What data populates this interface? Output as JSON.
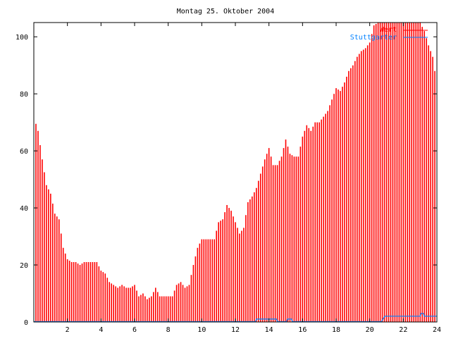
{
  "chart_data": {
    "type": "bar",
    "title": "Montag 25. Oktober 2004",
    "xlabel": "",
    "ylabel": "",
    "xlim": [
      0,
      24
    ],
    "ylim": [
      0,
      105
    ],
    "xticks": [
      2,
      4,
      6,
      8,
      10,
      12,
      14,
      16,
      18,
      20,
      22,
      24
    ],
    "yticks": [
      0,
      20,
      40,
      60,
      80,
      100
    ],
    "grid": false,
    "legend_position": "top-right",
    "series": [
      {
        "name": "Wert",
        "type": "impulses",
        "color": "#ff0000",
        "x_step_hours": 0.25,
        "values": [
          72,
          67,
          57,
          48,
          45,
          38,
          36,
          26,
          22,
          21,
          21,
          20,
          21,
          21,
          21,
          21,
          18,
          17,
          14,
          13,
          12,
          13,
          12,
          12,
          13,
          9,
          10,
          8,
          9,
          12,
          9,
          9,
          9,
          9,
          13,
          14,
          12,
          13,
          20,
          26,
          29,
          29,
          29,
          29,
          35,
          36,
          41,
          39,
          35,
          31,
          33,
          42,
          44,
          47,
          52,
          57,
          61,
          55,
          55,
          58,
          64,
          59,
          58,
          58,
          65,
          69,
          67,
          70,
          70,
          72,
          74,
          78,
          82,
          81,
          84,
          88,
          90,
          93,
          95,
          96,
          98,
          104,
          105,
          105,
          105,
          105,
          105,
          105,
          105,
          105,
          105,
          105,
          105,
          102,
          97,
          93,
          83
        ]
      },
      {
        "name": "Stuttgarter",
        "type": "steps",
        "color": "#0080ff",
        "points": [
          [
            0,
            0
          ],
          [
            13.2,
            0
          ],
          [
            13.25,
            0.9
          ],
          [
            14.45,
            0.9
          ],
          [
            14.5,
            0
          ],
          [
            15.05,
            0
          ],
          [
            15.1,
            0.9
          ],
          [
            15.35,
            0.9
          ],
          [
            15.4,
            0
          ],
          [
            20.7,
            0
          ],
          [
            20.8,
            1
          ],
          [
            20.9,
            1.9
          ],
          [
            23.0,
            1.9
          ],
          [
            23.05,
            2.9
          ],
          [
            23.2,
            2.9
          ],
          [
            23.25,
            1.9
          ],
          [
            24,
            1.9
          ]
        ]
      }
    ]
  }
}
